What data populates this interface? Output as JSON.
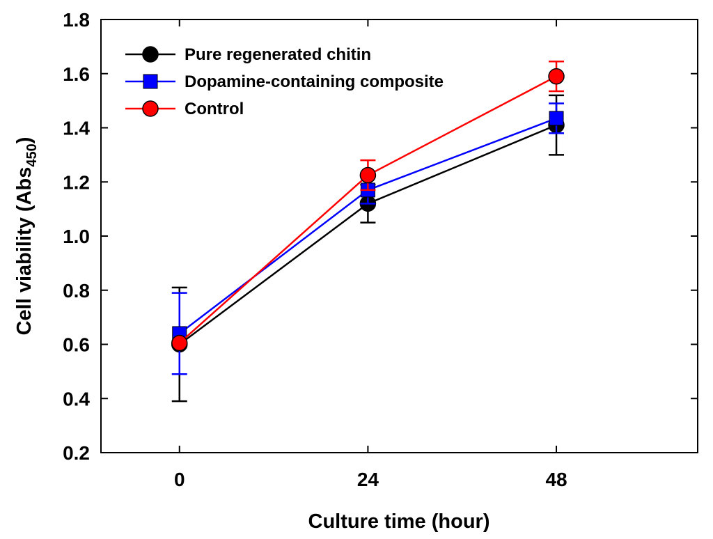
{
  "chart_data": {
    "type": "line",
    "title": "",
    "xlabel": "Culture time (hour)",
    "ylabel": {
      "main": "Cell viability (Abs",
      "sub": "450",
      "close": ")"
    },
    "x": [
      0,
      24,
      48
    ],
    "x_ticks": [
      "0",
      "24",
      "48"
    ],
    "y_ticks": [
      "0.2",
      "0.4",
      "0.6",
      "0.8",
      "1.0",
      "1.2",
      "1.4",
      "1.6",
      "1.8"
    ],
    "xlim": [
      -10,
      66
    ],
    "ylim": [
      0.2,
      1.8
    ],
    "legend_position": "top-left",
    "series": [
      {
        "name": "Pure regenerated chitin",
        "color": "#000000",
        "marker": "circle",
        "values": [
          0.6,
          1.12,
          1.41
        ],
        "errors": [
          0.21,
          0.07,
          0.11
        ]
      },
      {
        "name": "Dopamine-containing composite",
        "color": "#0000ff",
        "marker": "square",
        "values": [
          0.64,
          1.17,
          1.435
        ],
        "errors": [
          0.15,
          0.05,
          0.055
        ]
      },
      {
        "name": "Control",
        "color": "#ff0000",
        "marker": "circle",
        "values": [
          0.605,
          1.225,
          1.59
        ],
        "errors": [
          0.0,
          0.055,
          0.055
        ]
      }
    ]
  }
}
